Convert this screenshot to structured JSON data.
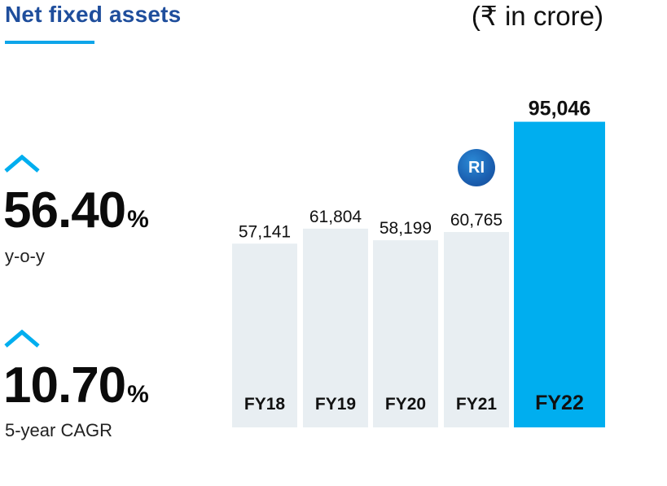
{
  "header": {
    "title": "Net fixed assets",
    "unit": "(₹  in crore)"
  },
  "stats": [
    {
      "value": "56.40",
      "suffix": "%",
      "label": "y-o-y",
      "icon": "caret-up-icon"
    },
    {
      "value": "10.70",
      "suffix": "%",
      "label": "5-year CAGR",
      "icon": "caret-up-icon"
    }
  ],
  "badge": {
    "text": "RI"
  },
  "colors": {
    "title": "#1f4e9c",
    "accent": "#0ea5e9",
    "bar_default": "#e8eef2",
    "bar_highlight": "#00aeef"
  },
  "chart_data": {
    "type": "bar",
    "title": "Net fixed assets",
    "unit": "(₹  in crore)",
    "categories": [
      "FY18",
      "FY19",
      "FY20",
      "FY21",
      "FY22"
    ],
    "values": [
      57141,
      61804,
      58199,
      60765,
      95046
    ],
    "value_labels": [
      "57,141",
      "61,804",
      "58,199",
      "60,765",
      "95,046"
    ],
    "highlight_index": 4,
    "ylim": [
      0,
      100000
    ],
    "grid": false
  }
}
